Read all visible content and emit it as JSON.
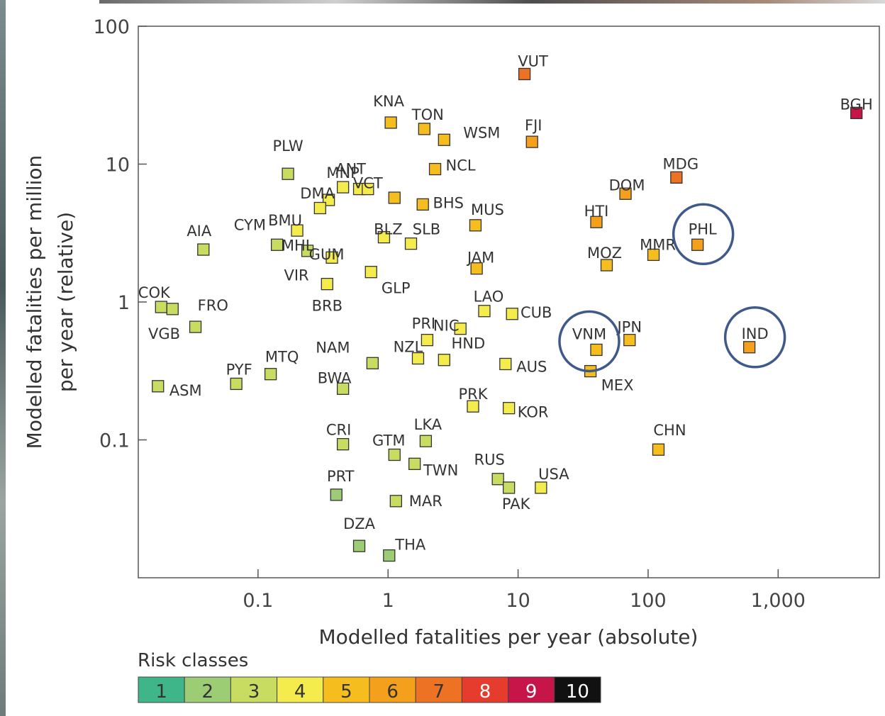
{
  "chart_data": {
    "type": "scatter",
    "xlabel": "Modelled fatalities per year (absolute)",
    "ylabel": [
      "Modelled fatalities per million",
      "per year (relative)"
    ],
    "x_scale": "log",
    "y_scale": "log",
    "xlim": [
      0.012,
      6000
    ],
    "ylim": [
      0.01,
      100
    ],
    "x_ticks": [
      {
        "v": 0.1,
        "label": "0.1"
      },
      {
        "v": 1,
        "label": "1"
      },
      {
        "v": 10,
        "label": "10"
      },
      {
        "v": 100,
        "label": "100"
      },
      {
        "v": 1000,
        "label": "1,000"
      }
    ],
    "y_ticks": [
      {
        "v": 0.1,
        "label": "0.1"
      },
      {
        "v": 1,
        "label": "1"
      },
      {
        "v": 10,
        "label": "10"
      },
      {
        "v": 100,
        "label": "100"
      }
    ],
    "grid": false,
    "legend": {
      "title": "Risk classes",
      "placement": "bottom-left",
      "classes": [
        {
          "label": "1",
          "color": "#3fb68a"
        },
        {
          "label": "2",
          "color": "#9ccc74"
        },
        {
          "label": "3",
          "color": "#c9dc62"
        },
        {
          "label": "4",
          "color": "#f4ec4c"
        },
        {
          "label": "5",
          "color": "#f6bd1e"
        },
        {
          "label": "6",
          "color": "#f4a01c"
        },
        {
          "label": "7",
          "color": "#ee7224"
        },
        {
          "label": "8",
          "color": "#e53c2d"
        },
        {
          "label": "9",
          "color": "#c7154a"
        },
        {
          "label": "10",
          "color": "#111111"
        }
      ]
    },
    "highlighted": [
      "PHL",
      "VNM",
      "IND"
    ],
    "points": [
      {
        "code": "VUT",
        "x": 11.2,
        "y": 45,
        "risk": 7
      },
      {
        "code": "BGH",
        "x": 4000,
        "y": 23.5,
        "risk": 9
      },
      {
        "code": "KNA",
        "x": 1.05,
        "y": 20,
        "risk": 5
      },
      {
        "code": "TON",
        "x": 1.9,
        "y": 18,
        "risk": 5
      },
      {
        "code": "WSM",
        "x": 2.7,
        "y": 15,
        "risk": 5
      },
      {
        "code": "FJI",
        "x": 12.8,
        "y": 14.5,
        "risk": 6
      },
      {
        "code": "PLW",
        "x": 0.17,
        "y": 8.5,
        "risk": 3
      },
      {
        "code": "NCL",
        "x": 2.3,
        "y": 9.2,
        "risk": 5
      },
      {
        "code": "MDG",
        "x": 165,
        "y": 8,
        "risk": 7
      },
      {
        "code": "MNP",
        "x": 0.45,
        "y": 6.8,
        "risk": 4
      },
      {
        "code": "DMA",
        "x": 0.35,
        "y": 5.5,
        "risk": 4
      },
      {
        "code": "ANT",
        "x": 0.6,
        "y": 6.6,
        "risk": 4
      },
      {
        "code": "VCT",
        "x": 0.7,
        "y": 6.6,
        "risk": 4
      },
      {
        "code": "ANT2",
        "x": 1.12,
        "y": 5.7,
        "risk": 5
      },
      {
        "code": "DOM",
        "x": 67,
        "y": 6.1,
        "risk": 6
      },
      {
        "code": "CYM",
        "x": 0.3,
        "y": 4.8,
        "risk": 4
      },
      {
        "code": "BHS",
        "x": 1.85,
        "y": 5.1,
        "risk": 5
      },
      {
        "code": "MUS",
        "x": 4.7,
        "y": 3.6,
        "risk": 5
      },
      {
        "code": "HTI",
        "x": 40,
        "y": 3.8,
        "risk": 6
      },
      {
        "code": "PHL",
        "x": 240,
        "y": 2.6,
        "risk": 6
      },
      {
        "code": "AIA",
        "x": 0.038,
        "y": 2.4,
        "risk": 3
      },
      {
        "code": "BMU",
        "x": 0.2,
        "y": 3.3,
        "risk": 4
      },
      {
        "code": "MHL",
        "x": 0.14,
        "y": 2.6,
        "risk": 3
      },
      {
        "code": "GUM",
        "x": 0.24,
        "y": 2.35,
        "risk": 3
      },
      {
        "code": "BLZ",
        "x": 0.93,
        "y": 2.95,
        "risk": 4
      },
      {
        "code": "SLB",
        "x": 1.5,
        "y": 2.65,
        "risk": 4
      },
      {
        "code": "MMR",
        "x": 110,
        "y": 2.2,
        "risk": 5
      },
      {
        "code": "MOZ",
        "x": 48,
        "y": 1.85,
        "risk": 5
      },
      {
        "code": "JAM",
        "x": 4.8,
        "y": 1.75,
        "risk": 5
      },
      {
        "code": "VIR",
        "x": 0.37,
        "y": 2.1,
        "risk": 4
      },
      {
        "code": "GLP",
        "x": 0.74,
        "y": 1.65,
        "risk": 4
      },
      {
        "code": "BRB",
        "x": 0.34,
        "y": 1.35,
        "risk": 4
      },
      {
        "code": "COK",
        "x": 0.018,
        "y": 0.92,
        "risk": 3
      },
      {
        "code": "FRO",
        "x": 0.022,
        "y": 0.89,
        "risk": 3
      },
      {
        "code": "VGB",
        "x": 0.033,
        "y": 0.66,
        "risk": 3
      },
      {
        "code": "LAO",
        "x": 5.5,
        "y": 0.86,
        "risk": 4
      },
      {
        "code": "CUB",
        "x": 9,
        "y": 0.82,
        "risk": 4
      },
      {
        "code": "NIC",
        "x": 3.6,
        "y": 0.64,
        "risk": 4
      },
      {
        "code": "PRI",
        "x": 2,
        "y": 0.53,
        "risk": 4
      },
      {
        "code": "VNM",
        "x": 40,
        "y": 0.45,
        "risk": 5
      },
      {
        "code": "JPN",
        "x": 72,
        "y": 0.53,
        "risk": 5
      },
      {
        "code": "IND",
        "x": 600,
        "y": 0.47,
        "risk": 6
      },
      {
        "code": "NZL",
        "x": 1.7,
        "y": 0.39,
        "risk": 4
      },
      {
        "code": "HND",
        "x": 2.7,
        "y": 0.38,
        "risk": 4
      },
      {
        "code": "NAM",
        "x": 0.76,
        "y": 0.36,
        "risk": 3
      },
      {
        "code": "AUS",
        "x": 8,
        "y": 0.355,
        "risk": 4
      },
      {
        "code": "MEX",
        "x": 36,
        "y": 0.315,
        "risk": 5
      },
      {
        "code": "MTQ",
        "x": 0.125,
        "y": 0.3,
        "risk": 3
      },
      {
        "code": "PYF",
        "x": 0.068,
        "y": 0.255,
        "risk": 3
      },
      {
        "code": "ASM",
        "x": 0.017,
        "y": 0.245,
        "risk": 3
      },
      {
        "code": "BWA",
        "x": 0.45,
        "y": 0.235,
        "risk": 3
      },
      {
        "code": "PRK",
        "x": 4.5,
        "y": 0.175,
        "risk": 4
      },
      {
        "code": "KOR",
        "x": 8.5,
        "y": 0.17,
        "risk": 4
      },
      {
        "code": "CRI",
        "x": 0.45,
        "y": 0.093,
        "risk": 3
      },
      {
        "code": "LKA",
        "x": 1.95,
        "y": 0.098,
        "risk": 3
      },
      {
        "code": "GTM",
        "x": 1.12,
        "y": 0.078,
        "risk": 3
      },
      {
        "code": "TWN",
        "x": 1.6,
        "y": 0.067,
        "risk": 3
      },
      {
        "code": "CHN",
        "x": 120,
        "y": 0.085,
        "risk": 5
      },
      {
        "code": "RUS",
        "x": 7,
        "y": 0.052,
        "risk": 3
      },
      {
        "code": "USA",
        "x": 15,
        "y": 0.045,
        "risk": 4
      },
      {
        "code": "PAK",
        "x": 8.5,
        "y": 0.045,
        "risk": 3
      },
      {
        "code": "PRT",
        "x": 0.4,
        "y": 0.04,
        "risk": 2
      },
      {
        "code": "MAR",
        "x": 1.15,
        "y": 0.036,
        "risk": 3
      },
      {
        "code": "DZA",
        "x": 0.6,
        "y": 0.017,
        "risk": 2
      },
      {
        "code": "THA",
        "x": 1.02,
        "y": 0.0145,
        "risk": 2
      }
    ],
    "labels": [
      {
        "text": "VUT",
        "for": "VUT"
      },
      {
        "text": "BGH",
        "for": "BGH"
      },
      {
        "text": "KNA",
        "for": "KNA"
      },
      {
        "text": "TON",
        "for": "TON"
      },
      {
        "text": "WSM",
        "for": "WSM"
      },
      {
        "text": "FJI",
        "for": "FJI"
      },
      {
        "text": "PLW",
        "for": "PLW"
      },
      {
        "text": "NCL",
        "for": "NCL"
      },
      {
        "text": "MDG",
        "for": "MDG"
      },
      {
        "text": "MNP",
        "for": "MNP"
      },
      {
        "text": "DMA",
        "for": "DMA"
      },
      {
        "text": "ANT",
        "for": "ANT"
      },
      {
        "text": "VCT",
        "for": "VCT"
      },
      {
        "text": "DOM",
        "for": "DOM"
      },
      {
        "text": "CYM",
        "for": "CYM"
      },
      {
        "text": "BMU",
        "for": "BMU"
      },
      {
        "text": "BHS",
        "for": "BHS"
      },
      {
        "text": "MUS",
        "for": "MUS"
      },
      {
        "text": "HTI",
        "for": "HTI"
      },
      {
        "text": "PHL",
        "for": "PHL"
      },
      {
        "text": "AIA",
        "for": "AIA"
      },
      {
        "text": "MHL",
        "for": "MHL"
      },
      {
        "text": "GUM",
        "for": "GUM"
      },
      {
        "text": "BLZ",
        "for": "BLZ"
      },
      {
        "text": "SLB",
        "for": "SLB"
      },
      {
        "text": "MMR",
        "for": "MMR"
      },
      {
        "text": "MOZ",
        "for": "MOZ"
      },
      {
        "text": "JAM",
        "for": "JAM"
      },
      {
        "text": "VIR",
        "for": "VIR"
      },
      {
        "text": "GLP",
        "for": "GLP"
      },
      {
        "text": "BRB",
        "for": "BRB"
      },
      {
        "text": "COK",
        "for": "COK"
      },
      {
        "text": "FRO",
        "for": "FRO"
      },
      {
        "text": "VGB",
        "for": "VGB"
      },
      {
        "text": "LAO",
        "for": "LAO"
      },
      {
        "text": "NIC",
        "for": "NIC"
      },
      {
        "text": "CUB",
        "for": "CUB"
      },
      {
        "text": "PRI",
        "for": "PRI"
      },
      {
        "text": "VNM",
        "for": "VNM"
      },
      {
        "text": "JPN",
        "for": "JPN"
      },
      {
        "text": "IND",
        "for": "IND"
      },
      {
        "text": "NAM",
        "for": "NAM"
      },
      {
        "text": "NZL",
        "for": "NZL"
      },
      {
        "text": "HND",
        "for": "HND"
      },
      {
        "text": "AUS",
        "for": "AUS"
      },
      {
        "text": "MEX",
        "for": "MEX"
      },
      {
        "text": "MTQ",
        "for": "MTQ"
      },
      {
        "text": "PYF",
        "for": "PYF"
      },
      {
        "text": "ASM",
        "for": "ASM"
      },
      {
        "text": "BWA",
        "for": "BWA"
      },
      {
        "text": "PRK",
        "for": "PRK"
      },
      {
        "text": "KOR",
        "for": "KOR"
      },
      {
        "text": "CRI",
        "for": "CRI"
      },
      {
        "text": "LKA",
        "for": "LKA"
      },
      {
        "text": "GTM",
        "for": "GTM"
      },
      {
        "text": "TWN",
        "for": "TWN"
      },
      {
        "text": "CHN",
        "for": "CHN"
      },
      {
        "text": "RUS",
        "for": "RUS"
      },
      {
        "text": "USA",
        "for": "USA"
      },
      {
        "text": "PAK",
        "for": "PAK"
      },
      {
        "text": "PRT",
        "for": "PRT"
      },
      {
        "text": "MAR",
        "for": "MAR"
      },
      {
        "text": "DZA",
        "for": "DZA"
      },
      {
        "text": "THA",
        "for": "THA"
      }
    ]
  }
}
